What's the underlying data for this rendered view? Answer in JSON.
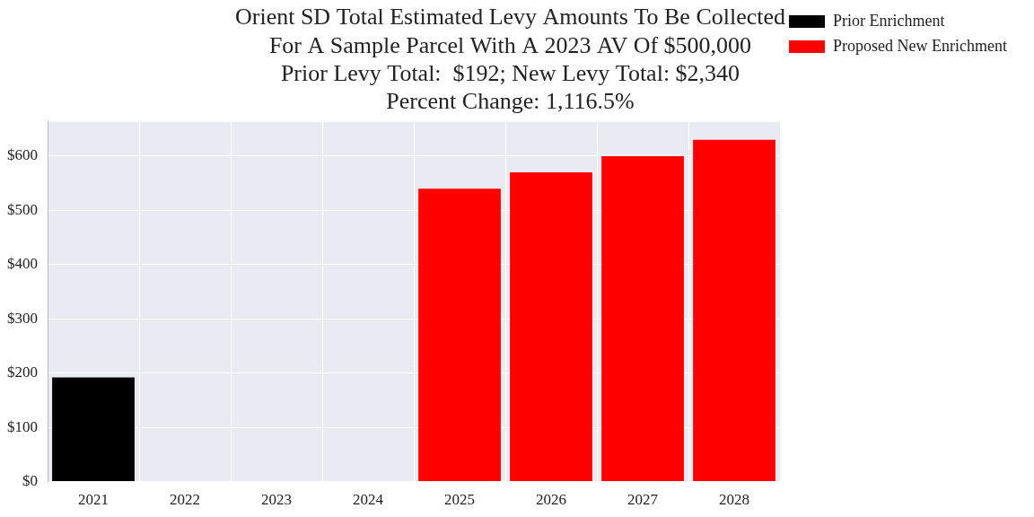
{
  "chart_data": {
    "type": "bar",
    "title": [
      "Orient SD Total Estimated Levy Amounts To Be Collected",
      "For A Sample Parcel With A 2023 AV Of $500,000",
      "Prior Levy Total:  $192; New Levy Total: $2,340",
      "Percent Change: 1,116.5%"
    ],
    "categories": [
      "2021",
      "2022",
      "2023",
      "2024",
      "2025",
      "2026",
      "2027",
      "2028"
    ],
    "series": [
      {
        "name": "Prior Enrichment",
        "color": "#000000",
        "values": [
          192,
          null,
          null,
          null,
          null,
          null,
          null,
          null
        ]
      },
      {
        "name": "Proposed New Enrichment",
        "color": "#ff0000",
        "values": [
          null,
          null,
          null,
          null,
          540,
          570,
          600,
          630
        ]
      }
    ],
    "ylim": [
      0,
      663
    ],
    "yticks": [
      {
        "value": 0,
        "label": "$0"
      },
      {
        "value": 100,
        "label": "$100"
      },
      {
        "value": 200,
        "label": "$200"
      },
      {
        "value": 300,
        "label": "$300"
      },
      {
        "value": 400,
        "label": "$400"
      },
      {
        "value": 500,
        "label": "$500"
      },
      {
        "value": 600,
        "label": "$600"
      }
    ],
    "stacked": true,
    "grid": true,
    "legend": "right"
  }
}
